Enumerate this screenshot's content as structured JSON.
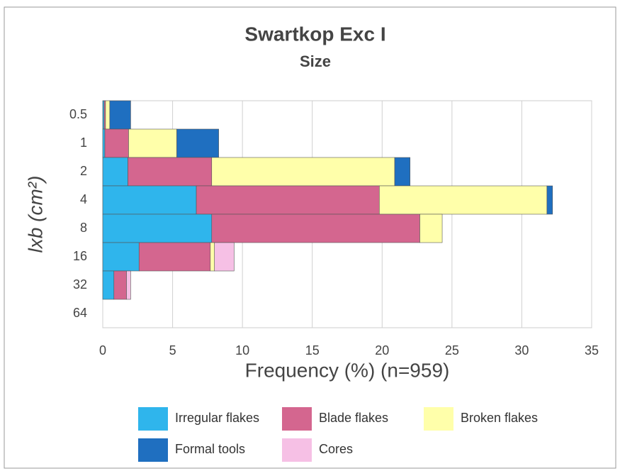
{
  "chart_data": {
    "type": "barh-stacked",
    "title": "Swartkop Exc I",
    "subtitle": "Size",
    "xlabel": "Frequency (%) (n=959)",
    "ylabel": "lxb (cm²)",
    "categories": [
      "0.5",
      "1",
      "2",
      "4",
      "8",
      "16",
      "32",
      "64"
    ],
    "series": [
      {
        "name": "Irregular flakes",
        "color": "#2fb5ec",
        "values": [
          0.1,
          0.15,
          1.8,
          6.7,
          7.8,
          2.6,
          0.8,
          0
        ]
      },
      {
        "name": "Blade flakes",
        "color": "#d4668f",
        "values": [
          0.1,
          1.7,
          6.0,
          13.1,
          14.9,
          5.1,
          0.9,
          0
        ]
      },
      {
        "name": "Broken flakes",
        "color": "#ffffaa",
        "values": [
          0.3,
          3.45,
          13.1,
          12.0,
          1.6,
          0.3,
          0,
          0
        ]
      },
      {
        "name": "Formal tools",
        "color": "#1f6fc0",
        "values": [
          1.5,
          3.0,
          1.1,
          0.4,
          0,
          0,
          0,
          0
        ]
      },
      {
        "name": "Cores",
        "color": "#f6c0e5",
        "values": [
          0,
          0,
          0,
          0,
          0,
          1.4,
          0.3,
          0
        ]
      }
    ],
    "xlim": [
      0,
      35
    ],
    "xticks": [
      0,
      5,
      10,
      15,
      20,
      25,
      30,
      35
    ],
    "grid": true
  }
}
